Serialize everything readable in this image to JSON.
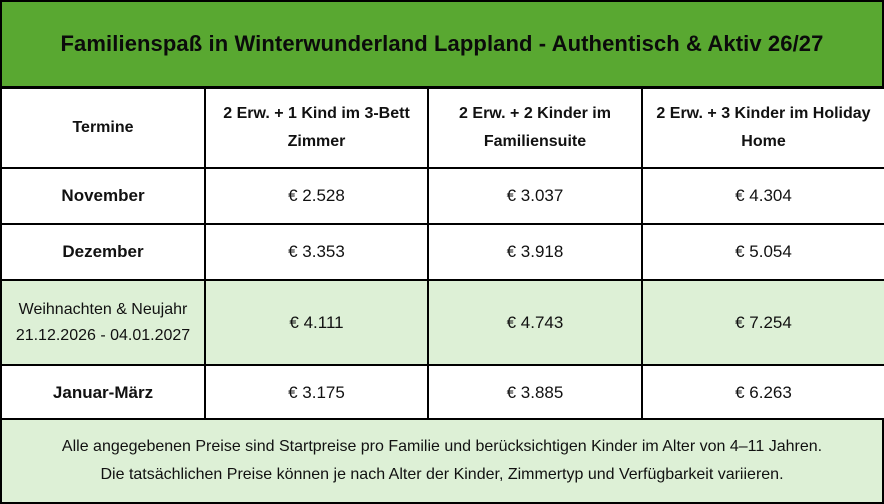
{
  "title": "Familienspaß in Winterwunderland Lappland - Authentisch & Aktiv 26/27",
  "colors": {
    "title_background": "#59a831",
    "highlight_row": "#ddf0d6",
    "footer_background": "#ddf0d6",
    "border": "#000000"
  },
  "table": {
    "headers": [
      "Termine",
      "2 Erw. + 1 Kind im 3-Bett Zimmer",
      "2 Erw. + 2 Kinder im Familiensuite",
      "2 Erw. + 3 Kinder im Holiday Home"
    ],
    "rows": [
      {
        "label": "November",
        "prices": [
          "€ 2.528",
          "€ 3.037",
          "€ 4.304"
        ]
      },
      {
        "label": "Dezember",
        "prices": [
          "€ 3.353",
          "€ 3.918",
          "€ 5.054"
        ]
      },
      {
        "label": "Weihnachten & Neujahr 21.12.2026 - 04.01.2027",
        "prices": [
          "€ 4.111",
          "€ 4.743",
          "€ 7.254"
        ]
      },
      {
        "label": "Januar-März",
        "prices": [
          "€ 3.175",
          "€ 3.885",
          "€ 6.263"
        ]
      }
    ]
  },
  "footer": {
    "line1": "Alle angegebenen Preise sind Startpreise pro Familie und berücksichtigen Kinder im Alter von 4–11 Jahren.",
    "line2": "Die tatsächlichen Preise können je nach Alter der Kinder, Zimmertyp und Verfügbarkeit variieren."
  }
}
